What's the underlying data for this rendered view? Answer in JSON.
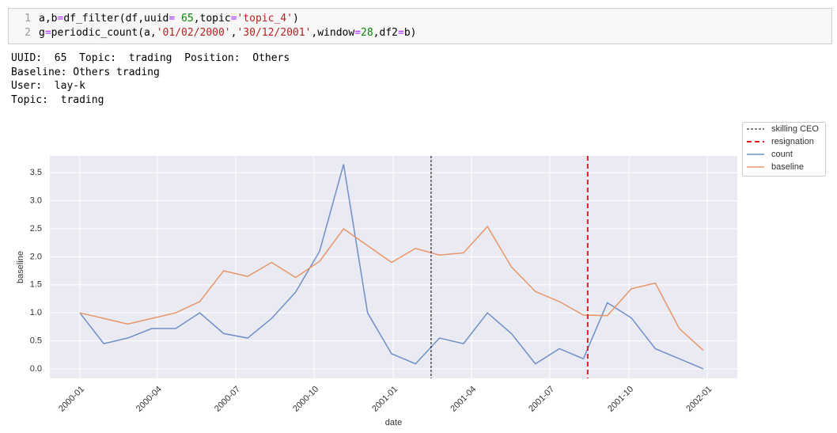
{
  "cell": {
    "lines": [
      {
        "number": "1",
        "tokens": [
          "a,b",
          "=",
          "df_filter(df,uuid",
          "=",
          " ",
          "65",
          ",topic",
          "=",
          "'topic_4'",
          ")"
        ]
      },
      {
        "number": "2",
        "tokens": [
          "g",
          "=",
          "periodic_count(a,",
          "'01/02/2000'",
          ",",
          "'30/12/2001'",
          ",window",
          "=",
          "28",
          ",df2",
          "=",
          "b)"
        ]
      }
    ]
  },
  "output": {
    "lines": [
      "UUID:  65  Topic:  trading  Position:  Others",
      "Baseline: Others trading",
      "User:  lay-k",
      "Topic:  trading"
    ]
  },
  "chart_data": {
    "type": "line",
    "xlabel": "date",
    "ylabel": "baseline",
    "grid": true,
    "legend": "outside-upper-right",
    "xlim": [
      -1.25,
      27.42
    ],
    "ylim": [
      -0.17,
      3.8
    ],
    "xticks": [
      {
        "value": 0,
        "label": "2000-01"
      },
      {
        "value": 3.23,
        "label": "2000-04"
      },
      {
        "value": 6.5,
        "label": "2000-07"
      },
      {
        "value": 9.77,
        "label": "2000-10"
      },
      {
        "value": 13.07,
        "label": "2001-01"
      },
      {
        "value": 16.34,
        "label": "2001-04"
      },
      {
        "value": 19.6,
        "label": "2001-07"
      },
      {
        "value": 22.9,
        "label": "2001-10"
      },
      {
        "value": 26.17,
        "label": "2002-01"
      }
    ],
    "yticks": [
      {
        "value": 0,
        "label": "0.0"
      },
      0.5,
      {
        "value": 1,
        "label": "1.0"
      },
      1.5,
      {
        "value": 2,
        "label": "2.0"
      },
      2.5,
      {
        "value": 3,
        "label": "3.0"
      },
      3.5
    ],
    "vlines": [
      {
        "name": "skilling CEO",
        "x": 14.65,
        "color": "#000000",
        "style": "dashed-thin"
      },
      {
        "name": "resignation",
        "x": 21.18,
        "color": "#e41a1c",
        "style": "dashed-thick"
      }
    ],
    "series": [
      {
        "name": "count",
        "color": "#6f8fc7",
        "values": [
          1.0,
          0.45,
          0.55,
          0.72,
          0.72,
          1.0,
          0.63,
          0.55,
          0.9,
          1.37,
          2.1,
          3.65,
          1.0,
          0.27,
          0.09,
          0.55,
          0.45,
          1.0,
          0.63,
          0.09,
          0.36,
          0.18,
          1.18,
          0.91,
          0.36,
          0.18,
          0.0
        ]
      },
      {
        "name": "baseline",
        "color": "#e8956a",
        "values": [
          1.0,
          0.9,
          0.8,
          0.9,
          1.0,
          1.2,
          1.75,
          1.65,
          1.9,
          1.63,
          1.92,
          2.5,
          2.2,
          1.9,
          2.15,
          2.03,
          2.07,
          2.54,
          1.82,
          1.38,
          1.2,
          0.96,
          0.95,
          1.43,
          1.53,
          0.72,
          0.33
        ]
      }
    ]
  }
}
